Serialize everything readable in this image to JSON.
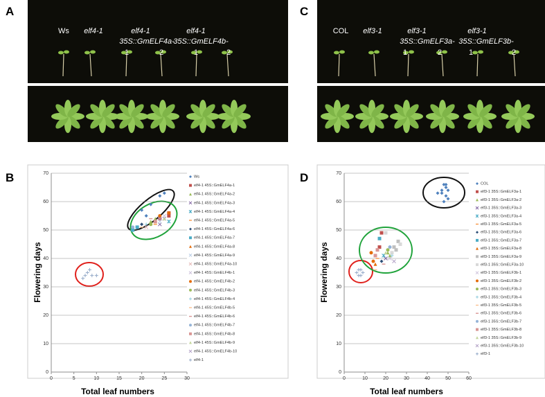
{
  "panel_letters": [
    "A",
    "C",
    "B",
    "D"
  ],
  "photo_labels": [
    "Ws",
    "elf4-1",
    "elf4-1",
    "35S::GmELF4a-",
    "1",
    "2",
    "elf4-1",
    "35S::GmELF4b-",
    "1",
    "2",
    "COL",
    "elf3-1",
    "elf3-1",
    "35S::GmELF3a-",
    "1",
    "2",
    "elf3-1",
    "35S::GmELF3b-",
    "1",
    "2"
  ],
  "chart_data": [
    {
      "type": "scatter",
      "x_label": "Total leaf numbers",
      "y_label": "Flowering days",
      "xlim": [
        0,
        30
      ],
      "ylim": [
        0,
        70
      ],
      "xticks": [
        0,
        5,
        10,
        15,
        20,
        25,
        30
      ],
      "yticks": [
        0,
        10,
        20,
        30,
        40,
        50,
        60,
        70
      ],
      "grid": true,
      "series": [
        {
          "name": "Ws",
          "color": "#4f81bd",
          "marker": "diamond",
          "x": [
            19,
            20,
            21,
            22,
            24,
            25
          ],
          "values": [
            51,
            57,
            55,
            59,
            62,
            63
          ]
        },
        {
          "name": "elf4-1 45S::GmELF4a-1",
          "color": "#c0504d",
          "marker": "square",
          "x": [
            24,
            26,
            26
          ],
          "values": [
            54,
            55,
            56
          ]
        },
        {
          "name": "elf4-1 45S::GmELF4a-2",
          "color": "#9bbb59",
          "marker": "triangle",
          "x": [
            22,
            23
          ],
          "values": [
            53,
            54
          ]
        },
        {
          "name": "elf4-1 45S::GmELF4a-3",
          "color": "#8064a2",
          "marker": "x",
          "x": [
            25,
            24
          ],
          "values": [
            54,
            52
          ]
        },
        {
          "name": "elf4-1 45S::GmELF4a-4",
          "color": "#4bacc6",
          "marker": "star",
          "x": [
            26
          ],
          "values": [
            53
          ]
        },
        {
          "name": "elf4-1 45S::GmELF4a-5",
          "color": "#f79646",
          "marker": "dash",
          "x": [
            23
          ],
          "values": [
            52
          ]
        },
        {
          "name": "elf4-1 45S::GmELF4a-6",
          "color": "#2c4d75",
          "marker": "diamond",
          "x": [
            19,
            20
          ],
          "values": [
            51,
            52
          ]
        },
        {
          "name": "elf4-1 45S::GmELF4a-7",
          "color": "#4bacc6",
          "marker": "square",
          "x": [
            18,
            19
          ],
          "values": [
            50,
            51
          ]
        },
        {
          "name": "elf4-1 45S::GmELF4a-8",
          "color": "#e46c0a",
          "marker": "triangle",
          "x": [
            23
          ],
          "values": [
            53
          ]
        },
        {
          "name": "elf4-1 45S::GmELF4a-9",
          "color": "#b9cde5",
          "marker": "x",
          "x": [
            24
          ],
          "values": [
            53
          ]
        },
        {
          "name": "elf4-1 45S::GmELF4a-10",
          "color": "#e6b9b8",
          "marker": "x",
          "x": [
            21
          ],
          "values": [
            51
          ]
        },
        {
          "name": "elf4-1 45S::GmELF4b-1",
          "color": "#ccc1da",
          "marker": "x",
          "x": [
            25
          ],
          "values": [
            55
          ]
        },
        {
          "name": "elf4-1 45S::GmELF4b-2",
          "color": "#e46c0a",
          "marker": "circle",
          "x": [
            24,
            26
          ],
          "values": [
            55,
            56
          ]
        },
        {
          "name": "elf4-1 45S::GmELF4b-3",
          "color": "#9bbb59",
          "marker": "circle",
          "x": [
            22
          ],
          "values": [
            52
          ]
        },
        {
          "name": "elf4-1 45S::GmELF4b-4",
          "color": "#93cddd",
          "marker": "plus",
          "x": [
            21
          ],
          "values": [
            52
          ]
        },
        {
          "name": "elf4-1 45S::GmELF4b-5",
          "color": "#fac090",
          "marker": "dash",
          "x": [
            20
          ],
          "values": [
            51
          ]
        },
        {
          "name": "elf4-1 45S::GmELF4b-6",
          "color": "#d99694",
          "marker": "dash",
          "x": [
            22
          ],
          "values": [
            54
          ]
        },
        {
          "name": "elf4-1 45S::GmELF4b-7",
          "color": "#95b3d7",
          "marker": "circle",
          "x": [
            18
          ],
          "values": [
            51
          ]
        },
        {
          "name": "elf4-1 45S::GmELF4b-8",
          "color": "#d99694",
          "marker": "square",
          "x": [
            23
          ],
          "values": [
            53
          ]
        },
        {
          "name": "elf4-1 45S::GmELF4b-9",
          "color": "#c3d69b",
          "marker": "triangle",
          "x": [
            25
          ],
          "values": [
            54
          ]
        },
        {
          "name": "elf4-1 45S::GmELF4b-10",
          "color": "#b3a2c7",
          "marker": "x",
          "x": [
            24
          ],
          "values": [
            54
          ]
        },
        {
          "name": "elf4-1",
          "color": "#93a9c8",
          "marker": "plus",
          "x": [
            7,
            8,
            8.5,
            9,
            10,
            7.5
          ],
          "values": [
            33,
            35,
            36,
            34,
            34,
            34
          ]
        }
      ]
    },
    {
      "type": "scatter",
      "x_label": "Total leaf numbers",
      "y_label": "Flowering days",
      "xlim": [
        0,
        60
      ],
      "ylim": [
        0,
        70
      ],
      "xticks": [
        0,
        10,
        20,
        30,
        40,
        50,
        60
      ],
      "yticks": [
        0,
        10,
        20,
        30,
        40,
        50,
        60,
        70
      ],
      "grid": true,
      "series": [
        {
          "name": "COL",
          "color": "#4f81bd",
          "marker": "diamond",
          "x": [
            45,
            47,
            48,
            49,
            50,
            49,
            48,
            50,
            47,
            49
          ],
          "values": [
            63,
            64,
            66,
            65,
            64,
            62,
            60,
            61,
            63,
            66
          ]
        },
        {
          "name": "elf3-1 35S::GmELF3a-1",
          "color": "#c0504d",
          "marker": "square",
          "x": [
            18,
            17
          ],
          "values": [
            49,
            44
          ]
        },
        {
          "name": "elf3-1 35S::GmELF3a-2",
          "color": "#9bbb59",
          "marker": "triangle",
          "x": [
            21,
            22
          ],
          "values": [
            42,
            41
          ]
        },
        {
          "name": "elf3-1 35S::GmELF3a-3",
          "color": "#8064a2",
          "marker": "x",
          "x": [
            20
          ],
          "values": [
            40
          ]
        },
        {
          "name": "elf3-1 35S::GmELF3a-4",
          "color": "#4bacc6",
          "marker": "star",
          "x": [
            19
          ],
          "values": [
            41
          ]
        },
        {
          "name": "elf3-1 35S::GmELF3a-5",
          "color": "#f79646",
          "marker": "dash",
          "x": [
            16
          ],
          "values": [
            40
          ]
        },
        {
          "name": "elf3-1 35S::GmELF3a-6",
          "color": "#2c4d75",
          "marker": "diamond",
          "x": [
            18
          ],
          "values": [
            39
          ]
        },
        {
          "name": "elf3-1 35S::GmELF3a-7",
          "color": "#4bacc6",
          "marker": "square",
          "x": [
            17
          ],
          "values": [
            47
          ]
        },
        {
          "name": "elf3-1 35S::GmELF3a-8",
          "color": "#e46c0a",
          "marker": "triangle",
          "x": [
            15
          ],
          "values": [
            38
          ]
        },
        {
          "name": "elf3-1 35S::GmELF3a-9",
          "color": "#bfbfbf",
          "marker": "square",
          "x": [
            24,
            26,
            25
          ],
          "values": [
            44,
            46,
            43
          ]
        },
        {
          "name": "elf3-1 35S::GmELF3a-10",
          "color": "#d9d9d9",
          "marker": "square",
          "x": [
            27,
            23,
            20
          ],
          "values": [
            45,
            42,
            49
          ]
        },
        {
          "name": "elf3-1 35S::GmELF3b-1",
          "color": "#ccc1da",
          "marker": "x",
          "x": [
            22
          ],
          "values": [
            40
          ]
        },
        {
          "name": "elf3-1 35S::GmELF3b-2",
          "color": "#e46c0a",
          "marker": "circle",
          "x": [
            13,
            14
          ],
          "values": [
            42,
            39
          ]
        },
        {
          "name": "elf3-1 35S::GmELF3b-3",
          "color": "#9bbb59",
          "marker": "circle",
          "x": [
            21
          ],
          "values": [
            43
          ]
        },
        {
          "name": "elf3-1 35S::GmELF3b-4",
          "color": "#93cddd",
          "marker": "plus",
          "x": [
            23
          ],
          "values": [
            41
          ]
        },
        {
          "name": "elf3-1 35S::GmELF3b-5",
          "color": "#fac090",
          "marker": "dash",
          "x": [
            15
          ],
          "values": [
            36
          ]
        },
        {
          "name": "elf3-1 35S::GmELF3b-6",
          "color": "#d99694",
          "marker": "dash",
          "x": [
            19
          ],
          "values": [
            38
          ]
        },
        {
          "name": "elf3-1 35S::GmELF3b-7",
          "color": "#95b3d7",
          "marker": "circle",
          "x": [
            22
          ],
          "values": [
            44
          ]
        },
        {
          "name": "elf3-1 35S::GmELF3b-8",
          "color": "#d99694",
          "marker": "square",
          "x": [
            16,
            15
          ],
          "values": [
            43,
            41
          ]
        },
        {
          "name": "elf3-1 35S::GmELF3b-9",
          "color": "#c3d69b",
          "marker": "triangle",
          "x": [
            20
          ],
          "values": [
            42
          ]
        },
        {
          "name": "elf3-1 35S::GmELF3b-10",
          "color": "#b3a2c7",
          "marker": "x",
          "x": [
            24
          ],
          "values": [
            39
          ]
        },
        {
          "name": "elf3-1",
          "color": "#93a9c8",
          "marker": "plus",
          "x": [
            6,
            7,
            8,
            7,
            9,
            8
          ],
          "values": [
            35,
            34,
            36,
            36,
            35,
            34
          ]
        }
      ]
    }
  ]
}
